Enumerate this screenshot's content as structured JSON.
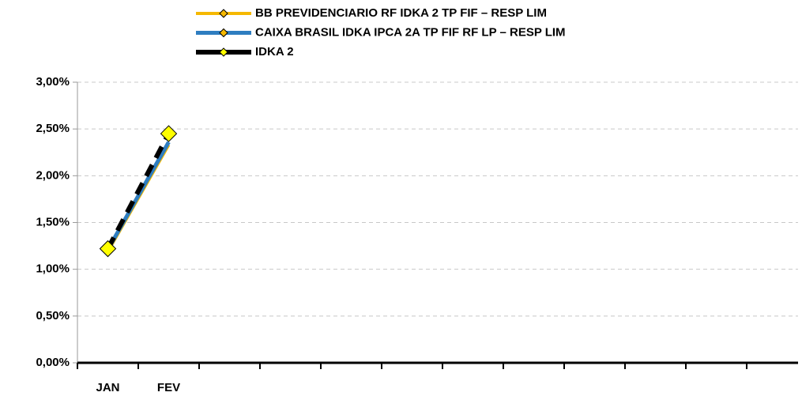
{
  "chart_data": {
    "type": "line",
    "categories": [
      "JAN",
      "FEV",
      null,
      null,
      null,
      null,
      null,
      null,
      null,
      null,
      null,
      null
    ],
    "series": [
      {
        "name": "BB PREVIDENCIARIO RF IDKA 2 TP FIF – RESP LIM",
        "color": "#f5b800",
        "values": [
          1.19,
          2.33,
          null,
          null,
          null,
          null,
          null,
          null,
          null,
          null,
          null,
          null
        ]
      },
      {
        "name": "CAIXA BRASIL IDKA IPCA 2A TP FIF RF LP – RESP LIM",
        "color": "#2e7dc0",
        "values": [
          1.21,
          2.36,
          null,
          null,
          null,
          null,
          null,
          null,
          null,
          null,
          null,
          null
        ]
      },
      {
        "name": "IDKA 2",
        "color": "#000000",
        "marker_color": "#ffff00",
        "values": [
          1.22,
          2.45,
          null,
          null,
          null,
          null,
          null,
          null,
          null,
          null,
          null,
          null
        ]
      }
    ],
    "ylim": [
      0,
      3
    ],
    "yticks": [
      {
        "value": 0,
        "label": "0,00%"
      },
      {
        "value": 0.5,
        "label": "0,50%"
      },
      {
        "value": 1,
        "label": "1,00%"
      },
      {
        "value": 1.5,
        "label": "1,50%"
      },
      {
        "value": 2,
        "label": "2,00%"
      },
      {
        "value": 2.5,
        "label": "2,50%"
      },
      {
        "value": 3,
        "label": "3,00%"
      }
    ],
    "grid": true
  }
}
